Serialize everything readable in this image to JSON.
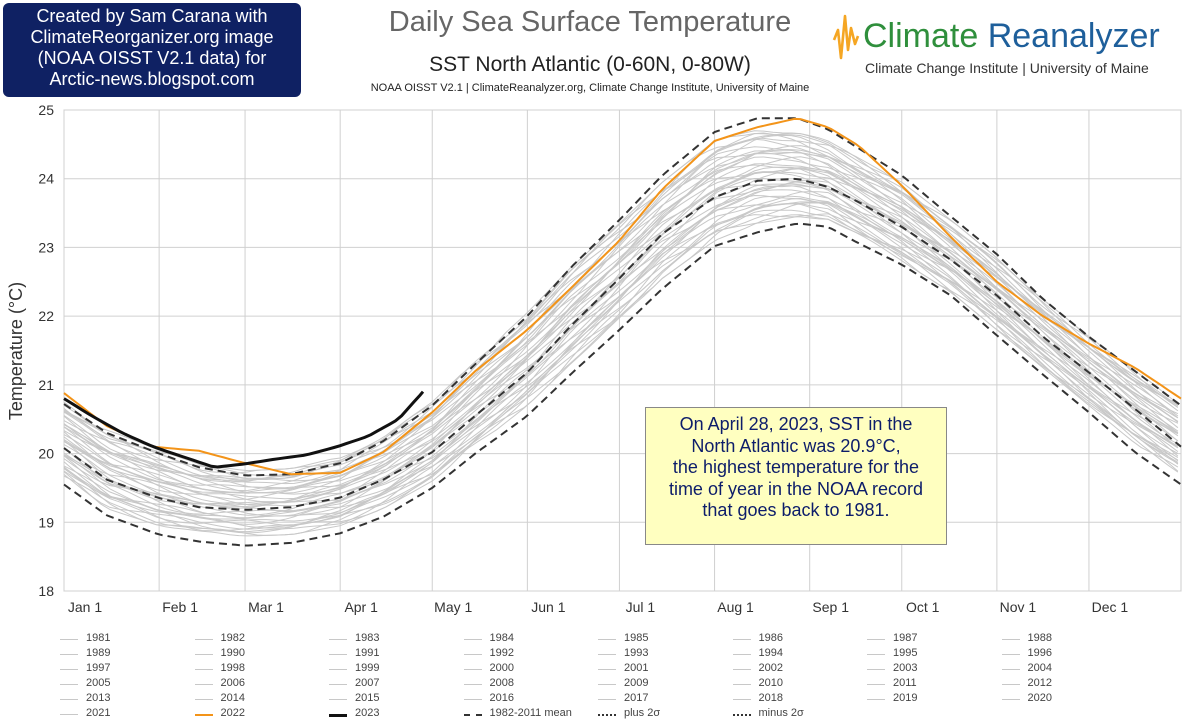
{
  "credit": {
    "lines": [
      "Created by Sam Carana with",
      "ClimateReorganizer.org image",
      "(NOAA OISST V2.1 data) for",
      "Arctic-news.blogspot.com"
    ]
  },
  "header": {
    "title": "Daily Sea Surface Temperature",
    "subtitle": "SST North Atlantic (0-60N, 0-80W)",
    "source": "NOAA OISST V2.1 | ClimateReanalyzer.org, Climate Change Institute, University of Maine"
  },
  "brand": {
    "name_part1": "Climate",
    "name_part2": "Reanalyzer",
    "tagline": "Climate Change Institute | University of Maine",
    "colors": {
      "green": "#2f8f3c",
      "blue": "#1e5f9b",
      "orange": "#f5a623"
    }
  },
  "annotation": {
    "lines": [
      "On April 28, 2023, SST in the",
      "North Atlantic was 20.9°C,",
      "the highest temperature for the",
      "time of year in the NOAA record",
      "that goes back to 1981."
    ]
  },
  "chart_data": {
    "type": "line",
    "title": "Daily Sea Surface Temperature",
    "subtitle": "SST North Atlantic (0-60N, 0-80W)",
    "ylabel": "Temperature (°C)",
    "xlabel": "",
    "xlim": [
      1,
      365
    ],
    "ylim": [
      18,
      25
    ],
    "yticks": [
      18,
      19,
      20,
      21,
      22,
      23,
      24,
      25
    ],
    "xticks": [
      {
        "label": "Jan 1",
        "day": 1
      },
      {
        "label": "Feb 1",
        "day": 32
      },
      {
        "label": "Mar 1",
        "day": 60
      },
      {
        "label": "Apr 1",
        "day": 91
      },
      {
        "label": "May 1",
        "day": 121
      },
      {
        "label": "Jun 1",
        "day": 152
      },
      {
        "label": "Jul 1",
        "day": 182
      },
      {
        "label": "Aug 1",
        "day": 213
      },
      {
        "label": "Sep 1",
        "day": 244
      },
      {
        "label": "Oct 1",
        "day": 274
      },
      {
        "label": "Nov 1",
        "day": 305
      },
      {
        "label": "Dec 1",
        "day": 335
      }
    ],
    "grid": true,
    "legend_position": "bottom",
    "colors": {
      "history": "#c8c8c8",
      "y2022": "#f39419",
      "y2023": "#111111",
      "stats": "#333333",
      "grid": "#d0d0d0"
    },
    "series": [
      {
        "name": "2022",
        "style": "orange",
        "x": [
          1,
          15,
          30,
          45,
          60,
          75,
          91,
          105,
          121,
          135,
          152,
          166,
          182,
          196,
          213,
          227,
          240,
          250,
          260,
          274,
          290,
          305,
          320,
          335,
          350,
          365
        ],
        "y": [
          20.88,
          20.4,
          20.1,
          20.04,
          19.86,
          19.7,
          19.72,
          20.02,
          20.6,
          21.2,
          21.8,
          22.4,
          23.1,
          23.85,
          24.55,
          24.75,
          24.88,
          24.75,
          24.48,
          23.9,
          23.15,
          22.5,
          22.0,
          21.6,
          21.25,
          20.8
        ]
      },
      {
        "name": "2023",
        "style": "black",
        "x": [
          1,
          10,
          20,
          30,
          40,
          50,
          60,
          70,
          80,
          90,
          100,
          110,
          118
        ],
        "y": [
          20.8,
          20.55,
          20.3,
          20.1,
          19.95,
          19.8,
          19.85,
          19.92,
          19.98,
          20.1,
          20.25,
          20.5,
          20.9
        ]
      },
      {
        "name": "1982-2011 mean",
        "style": "dashed",
        "x": [
          1,
          15,
          32,
          45,
          60,
          75,
          91,
          105,
          121,
          135,
          152,
          166,
          182,
          196,
          213,
          227,
          240,
          250,
          260,
          274,
          290,
          305,
          320,
          335,
          350,
          365
        ],
        "y": [
          20.08,
          19.62,
          19.35,
          19.22,
          19.18,
          19.22,
          19.36,
          19.62,
          20.02,
          20.55,
          21.18,
          21.85,
          22.55,
          23.2,
          23.73,
          23.97,
          24.0,
          23.88,
          23.66,
          23.3,
          22.82,
          22.3,
          21.7,
          21.18,
          20.65,
          20.1
        ]
      },
      {
        "name": "plus 2σ",
        "style": "dashed",
        "x": [
          1,
          15,
          32,
          45,
          60,
          75,
          91,
          105,
          121,
          135,
          152,
          166,
          182,
          196,
          213,
          227,
          240,
          250,
          260,
          274,
          290,
          305,
          320,
          335,
          350,
          365
        ],
        "y": [
          20.72,
          20.3,
          20.0,
          19.8,
          19.68,
          19.7,
          19.86,
          20.18,
          20.7,
          21.3,
          22.0,
          22.7,
          23.4,
          24.05,
          24.68,
          24.88,
          24.88,
          24.72,
          24.44,
          24.05,
          23.45,
          22.9,
          22.25,
          21.7,
          21.2,
          20.7
        ]
      },
      {
        "name": "minus 2σ",
        "style": "dashed",
        "x": [
          1,
          15,
          32,
          45,
          60,
          75,
          91,
          105,
          121,
          135,
          152,
          166,
          182,
          196,
          213,
          227,
          240,
          250,
          260,
          274,
          290,
          305,
          320,
          335,
          350,
          365
        ],
        "y": [
          19.55,
          19.1,
          18.82,
          18.72,
          18.66,
          18.7,
          18.84,
          19.08,
          19.5,
          20.0,
          20.55,
          21.15,
          21.8,
          22.4,
          23.02,
          23.22,
          23.35,
          23.3,
          23.06,
          22.75,
          22.3,
          21.72,
          21.15,
          20.6,
          20.02,
          19.55
        ]
      }
    ],
    "history_years": [
      "1981",
      "1982",
      "1983",
      "1984",
      "1985",
      "1986",
      "1987",
      "1988",
      "1989",
      "1990",
      "1991",
      "1992",
      "1993",
      "1994",
      "1995",
      "1996",
      "1997",
      "1998",
      "1999",
      "2000",
      "2001",
      "2002",
      "2003",
      "2004",
      "2005",
      "2006",
      "2007",
      "2008",
      "2009",
      "2010",
      "2011",
      "2012",
      "2013",
      "2014",
      "2015",
      "2016",
      "2017",
      "2018",
      "2019",
      "2020",
      "2021"
    ],
    "history_envelope": {
      "x": [
        1,
        15,
        32,
        45,
        60,
        75,
        91,
        105,
        121,
        135,
        152,
        166,
        182,
        196,
        213,
        227,
        240,
        250,
        260,
        274,
        290,
        305,
        320,
        335,
        350,
        365
      ],
      "low": [
        19.65,
        19.2,
        18.95,
        18.85,
        18.8,
        18.82,
        18.95,
        19.2,
        19.6,
        20.1,
        20.7,
        21.3,
        21.95,
        22.55,
        23.1,
        23.35,
        23.45,
        23.4,
        23.15,
        22.8,
        22.35,
        21.8,
        21.25,
        20.7,
        20.15,
        19.7
      ],
      "high": [
        20.75,
        20.35,
        20.05,
        19.85,
        19.75,
        19.78,
        19.95,
        20.25,
        20.75,
        21.35,
        22.05,
        22.7,
        23.35,
        23.95,
        24.55,
        24.75,
        24.7,
        24.55,
        24.3,
        23.95,
        23.4,
        22.85,
        22.25,
        21.7,
        21.2,
        20.75
      ]
    }
  },
  "legend": {
    "items": [
      {
        "label": "1981",
        "style": "grey"
      },
      {
        "label": "1982",
        "style": "grey"
      },
      {
        "label": "1983",
        "style": "grey"
      },
      {
        "label": "1984",
        "style": "grey"
      },
      {
        "label": "1985",
        "style": "grey"
      },
      {
        "label": "1986",
        "style": "grey"
      },
      {
        "label": "1987",
        "style": "grey"
      },
      {
        "label": "1988",
        "style": "grey"
      },
      {
        "label": "1989",
        "style": "grey"
      },
      {
        "label": "1990",
        "style": "grey"
      },
      {
        "label": "1991",
        "style": "grey"
      },
      {
        "label": "1992",
        "style": "grey"
      },
      {
        "label": "1993",
        "style": "grey"
      },
      {
        "label": "1994",
        "style": "grey"
      },
      {
        "label": "1995",
        "style": "grey"
      },
      {
        "label": "1996",
        "style": "grey"
      },
      {
        "label": "1997",
        "style": "grey"
      },
      {
        "label": "1998",
        "style": "grey"
      },
      {
        "label": "1999",
        "style": "grey"
      },
      {
        "label": "2000",
        "style": "grey"
      },
      {
        "label": "2001",
        "style": "grey"
      },
      {
        "label": "2002",
        "style": "grey"
      },
      {
        "label": "2003",
        "style": "grey"
      },
      {
        "label": "2004",
        "style": "grey"
      },
      {
        "label": "2005",
        "style": "grey"
      },
      {
        "label": "2006",
        "style": "grey"
      },
      {
        "label": "2007",
        "style": "grey"
      },
      {
        "label": "2008",
        "style": "grey"
      },
      {
        "label": "2009",
        "style": "grey"
      },
      {
        "label": "2010",
        "style": "grey"
      },
      {
        "label": "2011",
        "style": "grey"
      },
      {
        "label": "2012",
        "style": "grey"
      },
      {
        "label": "2013",
        "style": "grey"
      },
      {
        "label": "2014",
        "style": "grey"
      },
      {
        "label": "2015",
        "style": "grey"
      },
      {
        "label": "2016",
        "style": "grey"
      },
      {
        "label": "2017",
        "style": "grey"
      },
      {
        "label": "2018",
        "style": "grey"
      },
      {
        "label": "2019",
        "style": "grey"
      },
      {
        "label": "2020",
        "style": "grey"
      },
      {
        "label": "2021",
        "style": "grey"
      },
      {
        "label": "2022",
        "style": "orange"
      },
      {
        "label": "2023",
        "style": "black"
      },
      {
        "label": "1982-2011 mean",
        "style": "dashed"
      },
      {
        "label": "plus 2σ",
        "style": "dashdot"
      },
      {
        "label": "minus 2σ",
        "style": "dashdot"
      }
    ]
  }
}
